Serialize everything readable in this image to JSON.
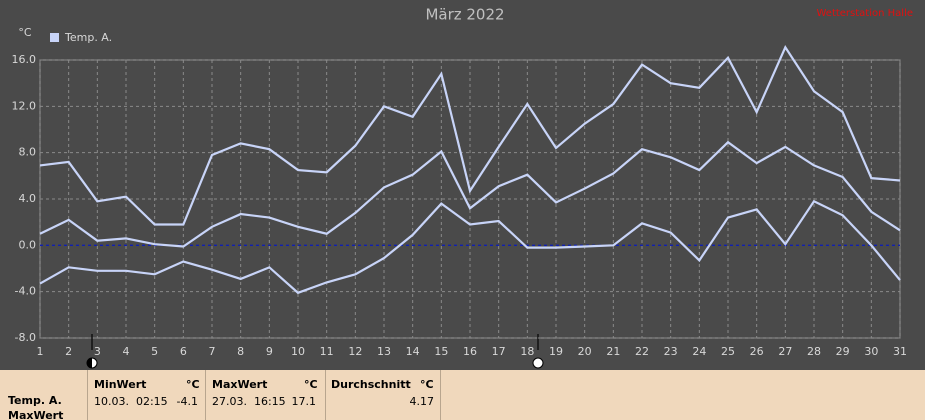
{
  "chart_data": {
    "type": "line",
    "title": "März 2022",
    "station": "Wetterstation Halle",
    "y_unit": "°C",
    "legend": "Temp. A.",
    "x": [
      1,
      2,
      3,
      4,
      5,
      6,
      7,
      8,
      9,
      10,
      11,
      12,
      13,
      14,
      15,
      16,
      17,
      18,
      19,
      20,
      21,
      22,
      23,
      24,
      25,
      26,
      27,
      28,
      29,
      30,
      31
    ],
    "xlim": [
      1,
      31
    ],
    "xticks": [
      1,
      2,
      3,
      4,
      5,
      6,
      7,
      8,
      9,
      10,
      11,
      12,
      13,
      14,
      15,
      16,
      17,
      18,
      19,
      20,
      21,
      22,
      23,
      24,
      25,
      26,
      27,
      28,
      29,
      30,
      31
    ],
    "ylim": [
      -8,
      16
    ],
    "yticks": [
      {
        "value": -8,
        "label": "-8.0"
      },
      {
        "value": -4,
        "label": "-4.0"
      },
      {
        "value": 0,
        "label": "0.0"
      },
      {
        "value": 4,
        "label": "4.0"
      },
      {
        "value": 8,
        "label": "8.0"
      },
      {
        "value": 12,
        "label": "12.0"
      },
      {
        "value": 16,
        "label": "16.0"
      }
    ],
    "grid": true,
    "series": [
      {
        "color": "#c8d4f8",
        "values": [
          6.9,
          7.2,
          3.8,
          4.2,
          1.8,
          1.8,
          7.8,
          8.8,
          8.3,
          6.5,
          6.3,
          8.6,
          12.0,
          11.1,
          14.8,
          4.7,
          8.5,
          12.2,
          8.4,
          10.5,
          12.2,
          15.6,
          14.0,
          13.6,
          16.2,
          11.5,
          17.1,
          13.3,
          11.5,
          5.8,
          5.6
        ]
      },
      {
        "color": "#c8d4f8",
        "values": [
          1.0,
          2.2,
          0.4,
          0.6,
          0.1,
          -0.1,
          1.6,
          2.7,
          2.4,
          1.6,
          1.0,
          2.8,
          5.0,
          6.1,
          8.1,
          3.2,
          5.1,
          6.1,
          3.7,
          4.9,
          6.2,
          8.3,
          7.6,
          6.5,
          8.9,
          7.1,
          8.5,
          6.9,
          5.9,
          2.9,
          1.3
        ]
      },
      {
        "color": "#c8d4f8",
        "values": [
          -3.3,
          -1.9,
          -2.2,
          -2.2,
          -2.5,
          -1.4,
          -2.1,
          -2.9,
          -1.9,
          -4.1,
          -3.2,
          -2.5,
          -1.1,
          0.9,
          3.6,
          1.8,
          2.1,
          -0.2,
          -0.2,
          -0.1,
          0.0,
          1.9,
          1.1,
          -1.3,
          2.4,
          3.1,
          0.1,
          3.8,
          2.6,
          0.0,
          -3.0
        ]
      }
    ]
  },
  "table": {
    "row_labels": [
      "Temp. A.",
      "MaxWert"
    ],
    "columns": [
      {
        "header": "MinWert",
        "unit": "°C",
        "time": "10.03.  02:15",
        "value": "-4.1"
      },
      {
        "header": "MaxWert",
        "unit": "°C",
        "time": "27.03.  16:15",
        "value": "17.1"
      },
      {
        "header": "Durchschnitt",
        "unit": "°C",
        "time": "",
        "value": "4.17"
      }
    ]
  }
}
